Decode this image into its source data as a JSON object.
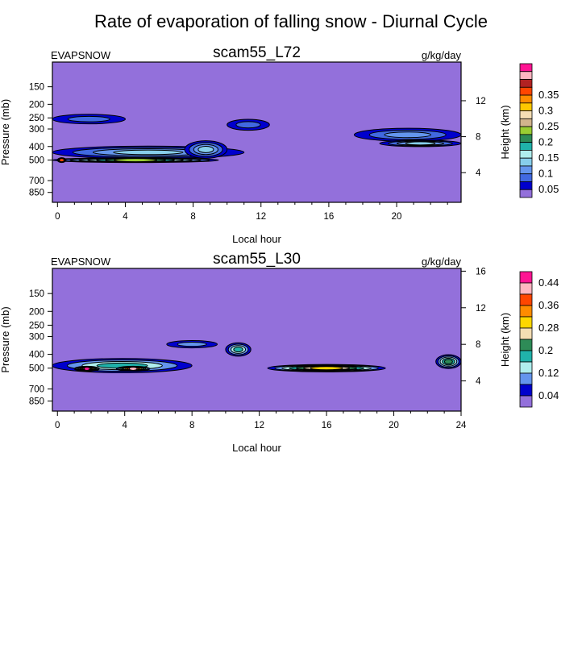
{
  "title": "Rate of evaporation of falling snow - Diurnal Cycle",
  "colors": {
    "background": "#9370db",
    "frame": "#000000"
  },
  "chart_data": [
    {
      "type": "heatmap",
      "name": "scam55_L72",
      "title": "scam55_L72",
      "left_label": "EVAPSNOW",
      "units": "g/kg/day",
      "xlabel": "Local hour",
      "ylabel": "Pressure (mb)",
      "ylabel_right": "Height (km)",
      "xlim": [
        -0.3,
        23.8
      ],
      "x_ticks": [
        0,
        4,
        8,
        12,
        16,
        20
      ],
      "pressure_ticks": [
        150,
        200,
        250,
        300,
        400,
        500,
        700,
        850
      ],
      "height_ticks": [
        4,
        8,
        12
      ],
      "height_range": [
        0.7,
        16.3
      ],
      "contour_levels": [
        0.025,
        0.05,
        0.075,
        0.1,
        0.125,
        0.15,
        0.175,
        0.2,
        0.225,
        0.25,
        0.275,
        0.3,
        0.325,
        0.35
      ],
      "colorbar_labels": [
        "0.35",
        "0.3",
        "0.25",
        "0.2",
        "0.15",
        "0.1",
        "0.05"
      ],
      "colorbar_colors": [
        "#ff1493",
        "#ffb6c1",
        "#b22222",
        "#ff4500",
        "#ff8c00",
        "#ffc800",
        "#f5deb3",
        "#d2b48c",
        "#9acd32",
        "#2e8b57",
        "#20b2aa",
        "#afeeee",
        "#87ceeb",
        "#6495ed",
        "#4169e1",
        "#0000cd",
        "#9370db"
      ],
      "features": [
        {
          "x": [
            -0.3,
            4.0
          ],
          "p": 255,
          "w": 40,
          "v": 0.06
        },
        {
          "x": [
            -0.3,
            11.0
          ],
          "p": 440,
          "w": 90,
          "v": 0.1
        },
        {
          "x": [
            -0.3,
            9.5
          ],
          "p": 500,
          "w": 40,
          "v": 0.2
        },
        {
          "x": [
            0.0,
            0.5
          ],
          "p": 500,
          "w": 30,
          "v": 0.33
        },
        {
          "x": [
            7.5,
            10.0
          ],
          "p": 420,
          "w": 120,
          "v": 0.12
        },
        {
          "x": [
            10.0,
            12.5
          ],
          "p": 280,
          "w": 50,
          "v": 0.07
        },
        {
          "x": [
            17.5,
            23.8
          ],
          "p": 330,
          "w": 70,
          "v": 0.08
        },
        {
          "x": [
            19.0,
            23.8
          ],
          "p": 380,
          "w": 40,
          "v": 0.1
        }
      ]
    },
    {
      "type": "heatmap",
      "name": "scam55_L30",
      "title": "scam55_L30",
      "left_label": "EVAPSNOW",
      "units": "g/kg/day",
      "xlabel": "Local hour",
      "ylabel": "Pressure (mb)",
      "ylabel_right": "Height (km)",
      "xlim": [
        -0.3,
        24
      ],
      "x_ticks": [
        0,
        4,
        8,
        12,
        16,
        20,
        24
      ],
      "pressure_ticks": [
        150,
        200,
        250,
        300,
        400,
        500,
        700,
        850
      ],
      "height_ticks": [
        4,
        8,
        12,
        16
      ],
      "height_range": [
        0.7,
        16.3
      ],
      "contour_levels": [
        0.02,
        0.04,
        0.08,
        0.12,
        0.16,
        0.2,
        0.24,
        0.28,
        0.32,
        0.36,
        0.4,
        0.44
      ],
      "colorbar_labels": [
        "0.44",
        "0.36",
        "0.28",
        "0.2",
        "0.12",
        "0.04"
      ],
      "colorbar_colors": [
        "#ff1493",
        "#ffb6c1",
        "#ff4500",
        "#ff8c00",
        "#ffd700",
        "#f5deb3",
        "#2e8b57",
        "#20b2aa",
        "#afeeee",
        "#6495ed",
        "#0000cd",
        "#9370db"
      ],
      "features": [
        {
          "x": [
            -0.3,
            8.0
          ],
          "p": 480,
          "w": 110,
          "v": 0.15
        },
        {
          "x": [
            1.0,
            2.5
          ],
          "p": 505,
          "w": 40,
          "v": 0.4
        },
        {
          "x": [
            3.5,
            5.5
          ],
          "p": 505,
          "w": 40,
          "v": 0.36
        },
        {
          "x": [
            12.5,
            19.5
          ],
          "p": 500,
          "w": 60,
          "v": 0.24
        },
        {
          "x": [
            10.0,
            11.5
          ],
          "p": 370,
          "w": 80,
          "v": 0.12
        },
        {
          "x": [
            6.5,
            9.5
          ],
          "p": 340,
          "w": 40,
          "v": 0.05
        },
        {
          "x": [
            22.5,
            24
          ],
          "p": 450,
          "w": 100,
          "v": 0.16
        }
      ]
    }
  ]
}
